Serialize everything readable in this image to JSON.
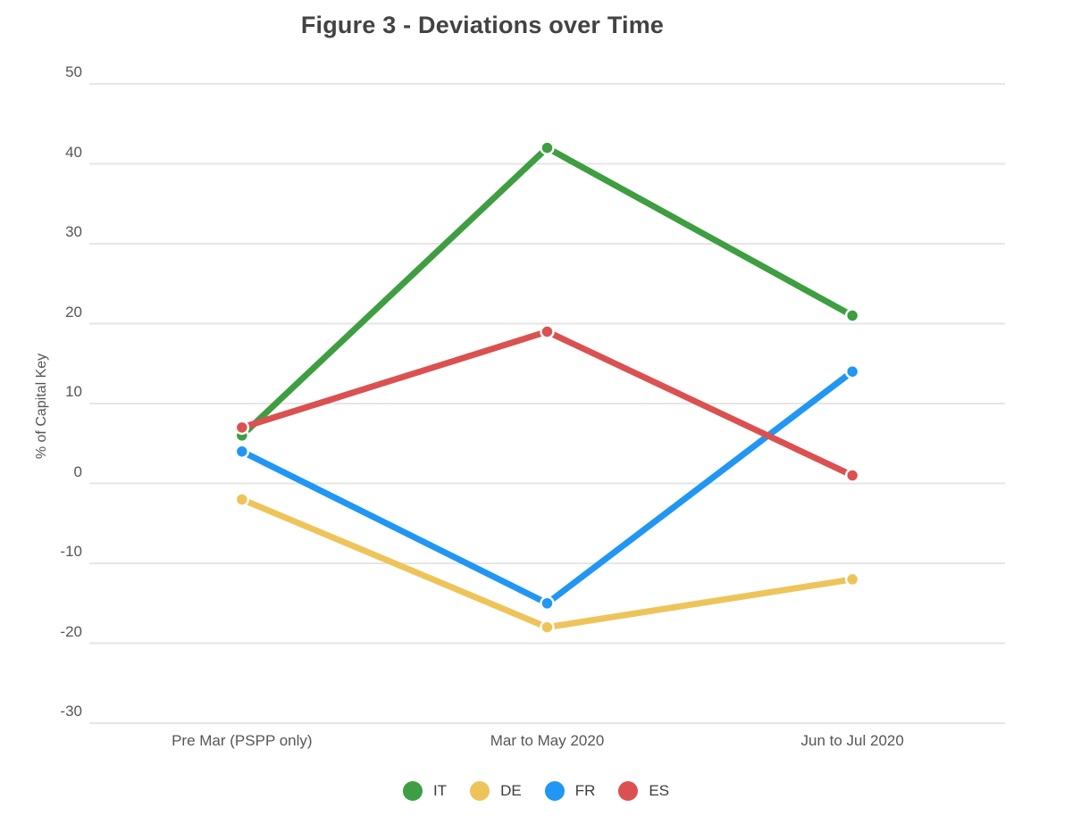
{
  "chart_data": {
    "type": "line",
    "title": "Figure 3 - Deviations over Time",
    "xlabel": "",
    "ylabel": "% of Capital Key",
    "categories": [
      "Pre Mar (PSPP only)",
      "Mar to May 2020",
      "Jun to Jul 2020"
    ],
    "series": [
      {
        "name": "IT",
        "color": "#3E9E41",
        "values": [
          6,
          42,
          21
        ]
      },
      {
        "name": "DE",
        "color": "#EEC45A",
        "values": [
          -2,
          -18,
          -12
        ]
      },
      {
        "name": "FR",
        "color": "#2196F3",
        "values": [
          4,
          -15,
          14
        ]
      },
      {
        "name": "ES",
        "color": "#DB5151",
        "values": [
          7,
          19,
          1
        ]
      }
    ],
    "ylim": [
      -30,
      50
    ],
    "y_ticks": [
      50,
      40,
      30,
      20,
      10,
      0,
      -10,
      -20,
      -30
    ],
    "grid": true,
    "legend_position": "bottom",
    "style_colors": {
      "gridline": "#e6e6e6",
      "title_text": "#434343",
      "axis_text": "#565656",
      "point_border": "#ffffff",
      "background": "#ffffff"
    }
  }
}
